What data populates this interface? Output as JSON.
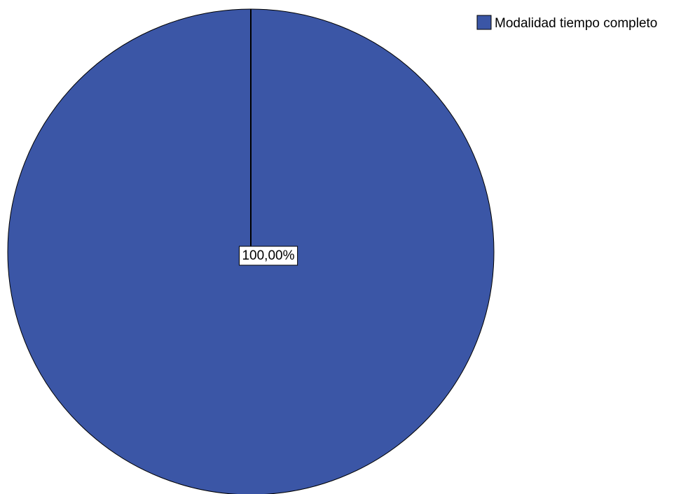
{
  "chart_data": {
    "type": "pie",
    "categories": [
      "Modalidad tiempo completo"
    ],
    "values": [
      100.0
    ],
    "data_labels": [
      "100,00%"
    ],
    "colors": [
      "#3b56a6"
    ],
    "legend": {
      "placement": "top-right",
      "entries": [
        "Modalidad tiempo completo"
      ]
    },
    "title": "",
    "start_angle": "12 o'clock",
    "direction": "clockwise"
  }
}
